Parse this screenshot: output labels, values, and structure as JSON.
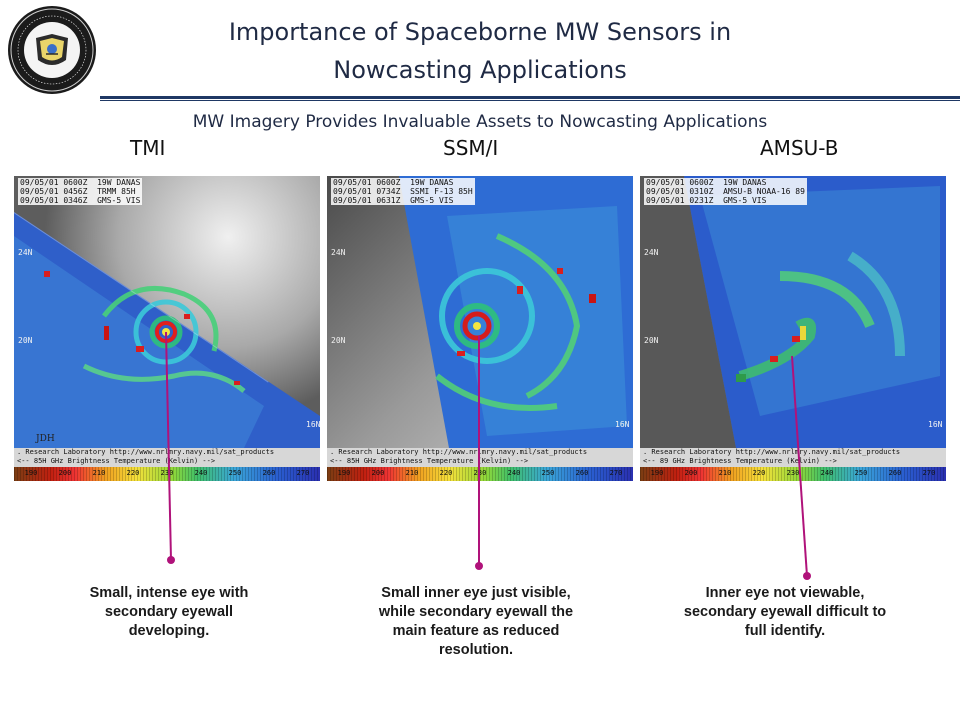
{
  "title": {
    "line1": "Importance of Spaceborne MW Sensors in",
    "line2": "Nowcasting Applications"
  },
  "subtitle": "MW Imagery Provides Invaluable Assets to Nowcasting Applications",
  "panels": [
    {
      "label": "TMI",
      "header": [
        "09/05/01 0600Z  19W DANAS",
        "09/05/01 0456Z  TRMM 85H",
        "09/05/01 0346Z  GMS-5 VIS"
      ],
      "footer1": ". Research Laboratory  http://www.nrlmry.navy.mil/sat_products",
      "footer2": "<--  85H GHz Brightness Temperature (Kelvin)  -->",
      "lat_labels": [
        "24N",
        "20N",
        "16N"
      ],
      "initials": "JDH",
      "caption": "Small, intense eye with secondary eyewall developing."
    },
    {
      "label": "SSM/I",
      "header": [
        "09/05/01 0600Z  19W DANAS",
        "09/05/01 0734Z  SSMI F-13 85H",
        "09/05/01 0631Z  GMS-5 VIS"
      ],
      "footer1": ". Research Laboratory  http://www.nrlmry.navy.mil/sat_products",
      "footer2": "<--  85H GHz Brightness Temperature (Kelvin)  -->",
      "lat_labels": [
        "24N",
        "20N",
        "16N"
      ],
      "caption": "Small inner eye just visible, while secondary eyewall the main feature as reduced resolution."
    },
    {
      "label": "AMSU-B",
      "header": [
        "09/05/01 0600Z  19W DANAS",
        "09/05/01 0310Z  AMSU-B NOAA-16 89",
        "09/05/01 0231Z  GMS-5 VIS"
      ],
      "footer1": ". Research Laboratory  http://www.nrlmry.navy.mil/sat_products",
      "footer2": "<--  89 GHz Brightness Temperature (Kelvin)  -->",
      "lat_labels": [
        "24N",
        "20N",
        "16N"
      ],
      "caption": "Inner eye not viewable, secondary eyewall difficult to full identify."
    }
  ],
  "colorbar_ticks": [
    "190",
    "200",
    "210",
    "220",
    "230",
    "240",
    "250",
    "260",
    "270"
  ],
  "colors": {
    "title_text": "#1f2a44",
    "rule": "#1f3864",
    "pointer": "#b0127a"
  }
}
